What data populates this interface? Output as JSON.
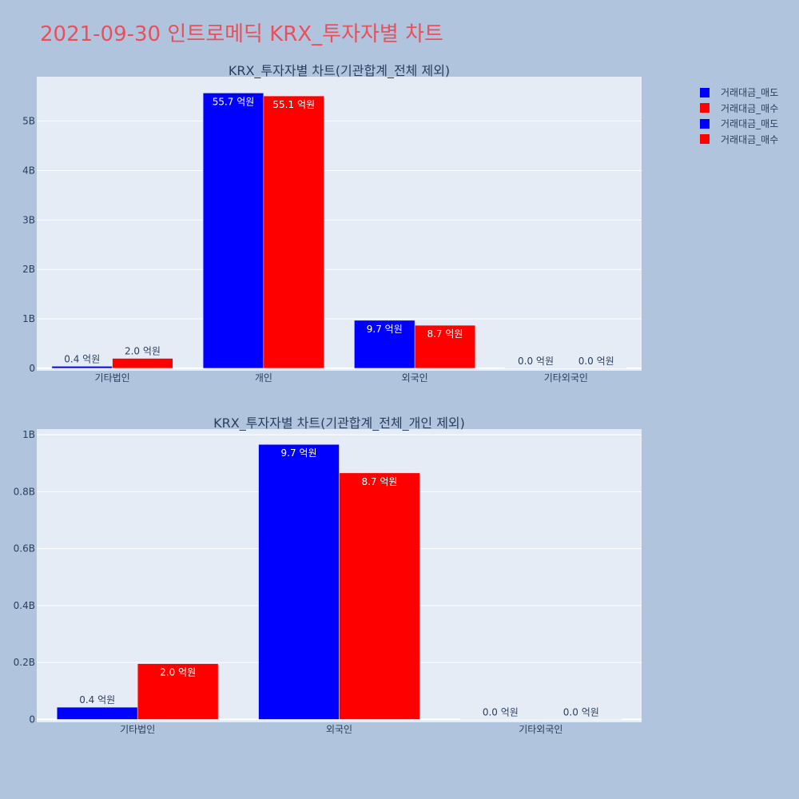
{
  "page": {
    "title": "2021-09-30 인트로메딕 KRX_투자자별 차트",
    "background": "#b0c4de",
    "title_color": "#e8505b"
  },
  "legend": {
    "placement": "top-right",
    "items": [
      {
        "label": "거래대금_매도",
        "color": "#0000ff"
      },
      {
        "label": "거래대금_매수",
        "color": "#ff0000"
      },
      {
        "label": "거래대금_매도",
        "color": "#0000ff"
      },
      {
        "label": "거래대금_매수",
        "color": "#ff0000"
      }
    ]
  },
  "chart_data": [
    {
      "type": "bar",
      "title": "KRX_투자자별 차트(기관합계_전체 제외)",
      "categories": [
        "기타법인",
        "개인",
        "외국인",
        "기타외국인"
      ],
      "series": [
        {
          "name": "거래대금_매도",
          "color": "#0000ff",
          "values": [
            40000000,
            5570000000,
            970000000,
            0
          ],
          "labels": [
            "0.4 억원",
            "55.7 억원",
            "9.7 억원",
            "0.0 억원"
          ]
        },
        {
          "name": "거래대금_매수",
          "color": "#ff0000",
          "values": [
            200000000,
            5510000000,
            870000000,
            0
          ],
          "labels": [
            "2.0 억원",
            "55.1 억원",
            "8.7 억원",
            "0.0 억원"
          ]
        }
      ],
      "ylim": [
        -50000000,
        5900000000
      ],
      "yticks": [
        0,
        1000000000,
        2000000000,
        3000000000,
        4000000000,
        5000000000
      ],
      "ytick_labels": [
        "0",
        "1B",
        "2B",
        "3B",
        "4B",
        "5B"
      ],
      "grid": true,
      "plot_background": "#e5ecf6"
    },
    {
      "type": "bar",
      "title": "KRX_투자자별 차트(기관합계_전체_개인 제외)",
      "categories": [
        "기타법인",
        "외국인",
        "기타외국인"
      ],
      "series": [
        {
          "name": "거래대금_매도",
          "color": "#0000ff",
          "values": [
            43000000,
            966000000,
            0
          ],
          "labels": [
            "0.4 억원",
            "9.7 억원",
            "0.0 억원"
          ]
        },
        {
          "name": "거래대금_매수",
          "color": "#ff0000",
          "values": [
            196000000,
            866000000,
            0
          ],
          "labels": [
            "2.0 억원",
            "8.7 억원",
            "0.0 억원"
          ]
        }
      ],
      "ylim": [
        -10000000,
        1020000000
      ],
      "yticks": [
        0,
        200000000,
        400000000,
        600000000,
        800000000,
        1000000000
      ],
      "ytick_labels": [
        "0",
        "0.2B",
        "0.4B",
        "0.6B",
        "0.8B",
        "1B"
      ],
      "grid": true,
      "plot_background": "#e5ecf6"
    }
  ]
}
